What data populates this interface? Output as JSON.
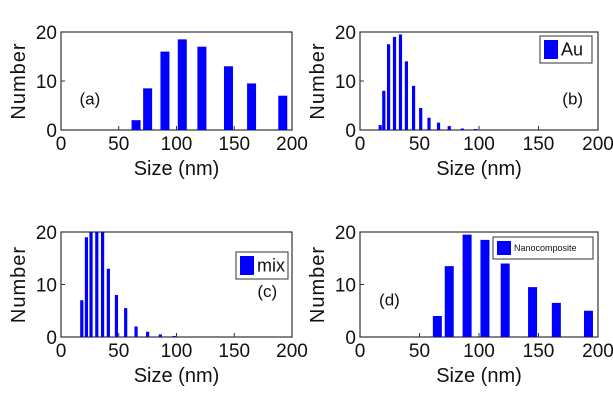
{
  "chart_data": [
    {
      "id": "a",
      "type": "bar",
      "panel_label": "(a)",
      "xlabel": "Size (nm)",
      "ylabel": "Number",
      "xlim": [
        0,
        200
      ],
      "ylim": [
        0,
        20
      ],
      "xticks": [
        "0",
        "50",
        "100",
        "150",
        "200"
      ],
      "yticks": [
        "0",
        "10",
        "20"
      ],
      "legend": null,
      "series": [
        {
          "color": "#0000ff",
          "x": [
            65,
            75,
            90,
            105,
            122,
            145,
            165,
            192
          ],
          "values": [
            2,
            8.5,
            16,
            18.5,
            17,
            13,
            9.5,
            7
          ]
        }
      ]
    },
    {
      "id": "b",
      "type": "bar",
      "panel_label": "(b)",
      "xlabel": "Size (nm)",
      "ylabel": "Number",
      "xlim": [
        0,
        200
      ],
      "ylim": [
        0,
        20
      ],
      "xticks": [
        "0",
        "50",
        "100",
        "150",
        "200"
      ],
      "yticks": [
        "0",
        "10",
        "20"
      ],
      "legend": {
        "text": "Au",
        "position": "top-right"
      },
      "series": [
        {
          "color": "#0000ff",
          "x": [
            17,
            20,
            24,
            29,
            34,
            39,
            45,
            51,
            58,
            66,
            75,
            86,
            97
          ],
          "values": [
            1,
            8,
            17.5,
            19,
            19.5,
            14,
            9,
            4.5,
            2.5,
            1.5,
            0.8,
            0.3,
            0.2
          ]
        }
      ]
    },
    {
      "id": "c",
      "type": "bar",
      "panel_label": "(c)",
      "xlabel": "Size (nm)",
      "ylabel": "Number",
      "xlim": [
        0,
        200
      ],
      "ylim": [
        0,
        20
      ],
      "xticks": [
        "0",
        "50",
        "100",
        "150",
        "200"
      ],
      "yticks": [
        "0",
        "10",
        "20"
      ],
      "legend": {
        "text": "mix",
        "position": "top-right"
      },
      "series": [
        {
          "color": "#0000ff",
          "x": [
            18,
            22,
            26,
            31,
            36,
            41,
            48,
            56,
            65,
            75,
            86,
            98
          ],
          "values": [
            7,
            19,
            20,
            20,
            20,
            13,
            8,
            5.5,
            2,
            1,
            0.5,
            0.2
          ]
        }
      ]
    },
    {
      "id": "d",
      "type": "bar",
      "panel_label": "(d)",
      "xlabel": "Size (nm)",
      "ylabel": "Number",
      "xlim": [
        0,
        200
      ],
      "ylim": [
        0,
        20
      ],
      "xticks": [
        "0",
        "50",
        "100",
        "150",
        "200"
      ],
      "yticks": [
        "0",
        "10",
        "20"
      ],
      "legend": {
        "text": "Nanocomposite",
        "position": "top-right"
      },
      "series": [
        {
          "color": "#0000ff",
          "x": [
            65,
            75,
            90,
            105,
            122,
            145,
            165,
            192
          ],
          "values": [
            4,
            13.5,
            19.5,
            18.5,
            14,
            9.5,
            6.5,
            5
          ]
        }
      ]
    }
  ]
}
